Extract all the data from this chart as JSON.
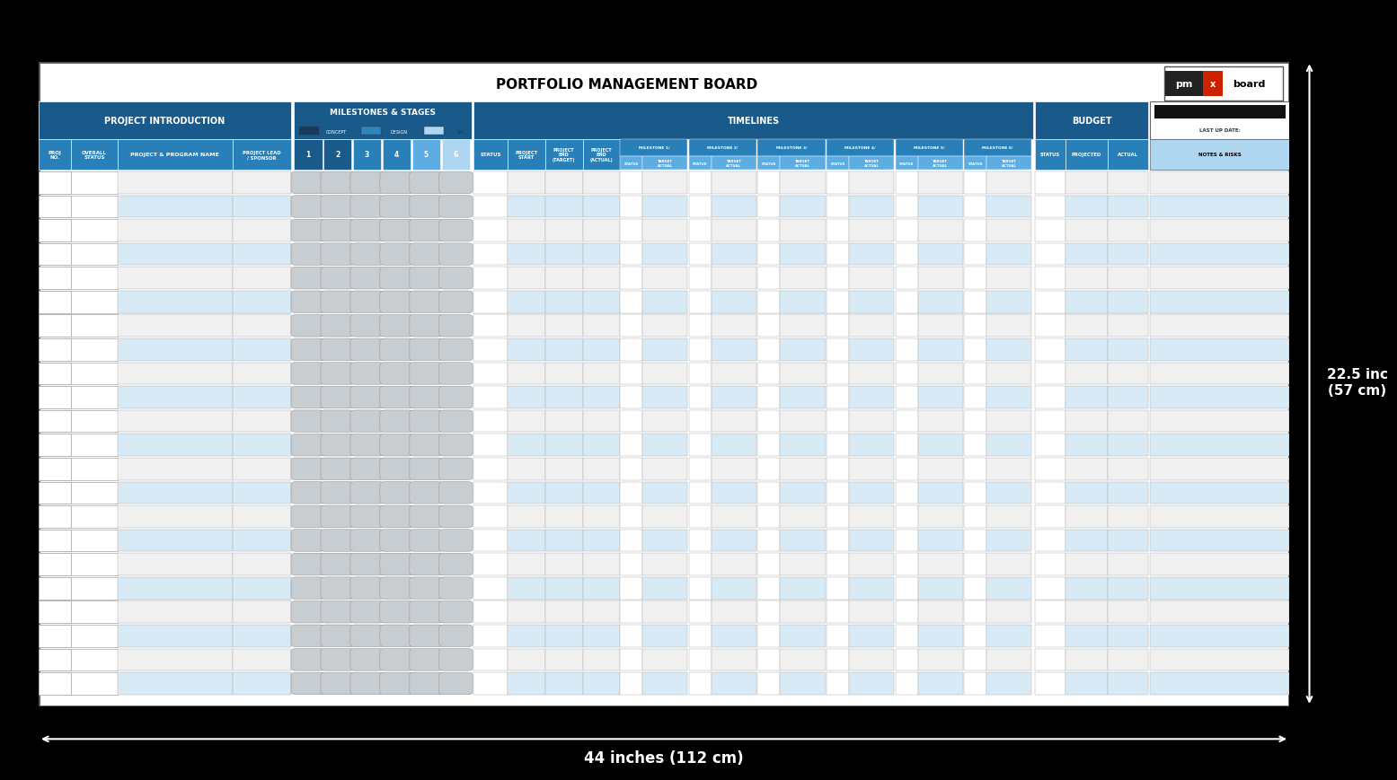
{
  "title": "PORTFOLIO MANAGEMENT BOARD",
  "bg_color": "#000000",
  "dark_blue": "#1a5a8a",
  "mid_blue": "#2980b9",
  "light_blue": "#5dade2",
  "very_light_blue": "#aed6f1",
  "pale_blue": "#d6eaf8",
  "row_blue": "#ddeef8",
  "row_gray": "#e0e0e0",
  "row_white": "#f5f5f5",
  "circle_gray": "#c8cdd2",
  "num_rows": 22,
  "dimension_text_h": "44 inches (112 cm)",
  "dimension_text_v": "22.5 inc\n(57 cm)"
}
